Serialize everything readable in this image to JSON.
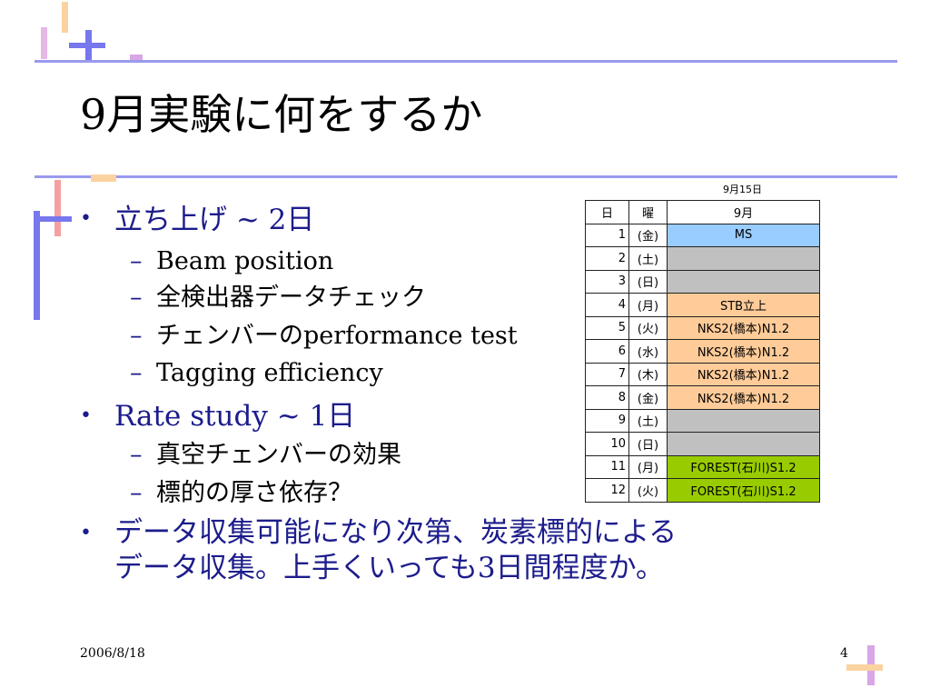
{
  "slide": {
    "title": "9月実験に何をするか",
    "bullets": [
      {
        "text": "立ち上げ ~ 2日",
        "sub": [
          "Beam position",
          "全検出器データチェック",
          "チェンバーのperformance test",
          "Tagging efficiency"
        ]
      },
      {
        "text": "Rate study ~ 1日",
        "sub": [
          "真空チェンバーの効果",
          "標的の厚さ依存？"
        ]
      },
      {
        "text_line1": "データ収集可能になり次第、炭素標的による",
        "text_line2": "データ収集。上手くいっても3日間程度か。"
      }
    ],
    "bullet_glyph": "•",
    "dash_glyph": "–"
  },
  "schedule": {
    "caption": "9月15日",
    "headers": {
      "day": "日",
      "dow": "曜",
      "event": "9月"
    },
    "rows": [
      {
        "day": "1",
        "dow": "(金)",
        "event": "MS",
        "color": "#99ccff"
      },
      {
        "day": "2",
        "dow": "(土)",
        "event": "",
        "color": "#c0c0c0"
      },
      {
        "day": "3",
        "dow": "(日)",
        "event": "",
        "color": "#c0c0c0"
      },
      {
        "day": "4",
        "dow": "(月)",
        "event": "STB立上",
        "color": "#ffcc99"
      },
      {
        "day": "5",
        "dow": "(火)",
        "event": "NKS2(橋本)N1.2",
        "color": "#ffcc99"
      },
      {
        "day": "6",
        "dow": "(水)",
        "event": "NKS2(橋本)N1.2",
        "color": "#ffcc99"
      },
      {
        "day": "7",
        "dow": "(木)",
        "event": "NKS2(橋本)N1.2",
        "color": "#ffcc99"
      },
      {
        "day": "8",
        "dow": "(金)",
        "event": "NKS2(橋本)N1.2",
        "color": "#ffcc99"
      },
      {
        "day": "9",
        "dow": "(土)",
        "event": "",
        "color": "#c0c0c0"
      },
      {
        "day": "10",
        "dow": "(日)",
        "event": "",
        "color": "#c0c0c0"
      },
      {
        "day": "11",
        "dow": "(月)",
        "event": "FOREST(石川)S1.2",
        "color": "#99cc00"
      },
      {
        "day": "12",
        "dow": "(火)",
        "event": "FOREST(石川)S1.2",
        "color": "#99cc00"
      }
    ]
  },
  "footer": {
    "date": "2006/8/18",
    "page": "4"
  },
  "colors": {
    "rule": "#9999ee",
    "bullet_text": "#1c1c8c",
    "deco_pink": "#f4a0a0",
    "deco_orange": "#fbd3a0",
    "deco_purple": "#d9a6e6",
    "deco_blue": "#7777ee"
  }
}
